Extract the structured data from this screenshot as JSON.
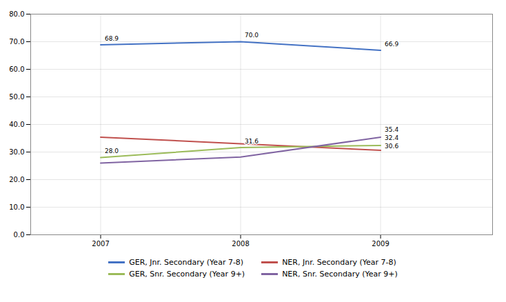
{
  "chart_data": {
    "type": "line",
    "x": [
      2007,
      2008,
      2009
    ],
    "series": [
      {
        "name": "GER, Jnr. Secondary (Year 7-8)",
        "color": "#4472C4",
        "values": [
          68.9,
          70.0,
          66.9
        ]
      },
      {
        "name": "NER, Jnr. Secondary (Year 7-8)",
        "color": "#C0504D",
        "values": [
          35.4,
          33.0,
          30.6
        ]
      },
      {
        "name": "GER, Snr. Secondary (Year 9+)",
        "color": "#9BBB59",
        "values": [
          28.0,
          31.6,
          32.4
        ]
      },
      {
        "name": "NER, Snr. Secondary (Year 9+)",
        "color": "#8064A2",
        "values": [
          26.0,
          28.2,
          35.4
        ]
      }
    ],
    "annotations": [
      {
        "x": 2007,
        "y": 68.9,
        "text": "68.9"
      },
      {
        "x": 2008,
        "y": 70.0,
        "text": "70.0"
      },
      {
        "x": 2009,
        "y": 66.9,
        "text": "66.9"
      },
      {
        "x": 2009,
        "y": 30.6,
        "text": "30.6"
      },
      {
        "x": 2007,
        "y": 28.0,
        "text": "28.0"
      },
      {
        "x": 2008,
        "y": 31.6,
        "text": "31.6"
      },
      {
        "x": 2009,
        "y": 32.4,
        "text": "32.4"
      },
      {
        "x": 2009,
        "y": 35.4,
        "text": "35.4"
      }
    ],
    "xlim": [
      2006.5,
      2009.8
    ],
    "xticks": [
      2007,
      2008,
      2009
    ],
    "ylim": [
      0.0,
      80.0
    ],
    "yticks": [
      {
        "value": 0,
        "label": "0.0"
      },
      {
        "value": 10,
        "label": "10.0"
      },
      {
        "value": 20,
        "label": "20.0"
      },
      {
        "value": 30,
        "label": "30.0"
      },
      {
        "value": 40,
        "label": "40.0"
      },
      {
        "value": 50,
        "label": "50.0"
      },
      {
        "value": 60,
        "label": "60.0"
      },
      {
        "value": 70,
        "label": "70.0"
      },
      {
        "value": 80,
        "label": "80.0"
      }
    ],
    "grid": true,
    "legend": "bottom"
  }
}
